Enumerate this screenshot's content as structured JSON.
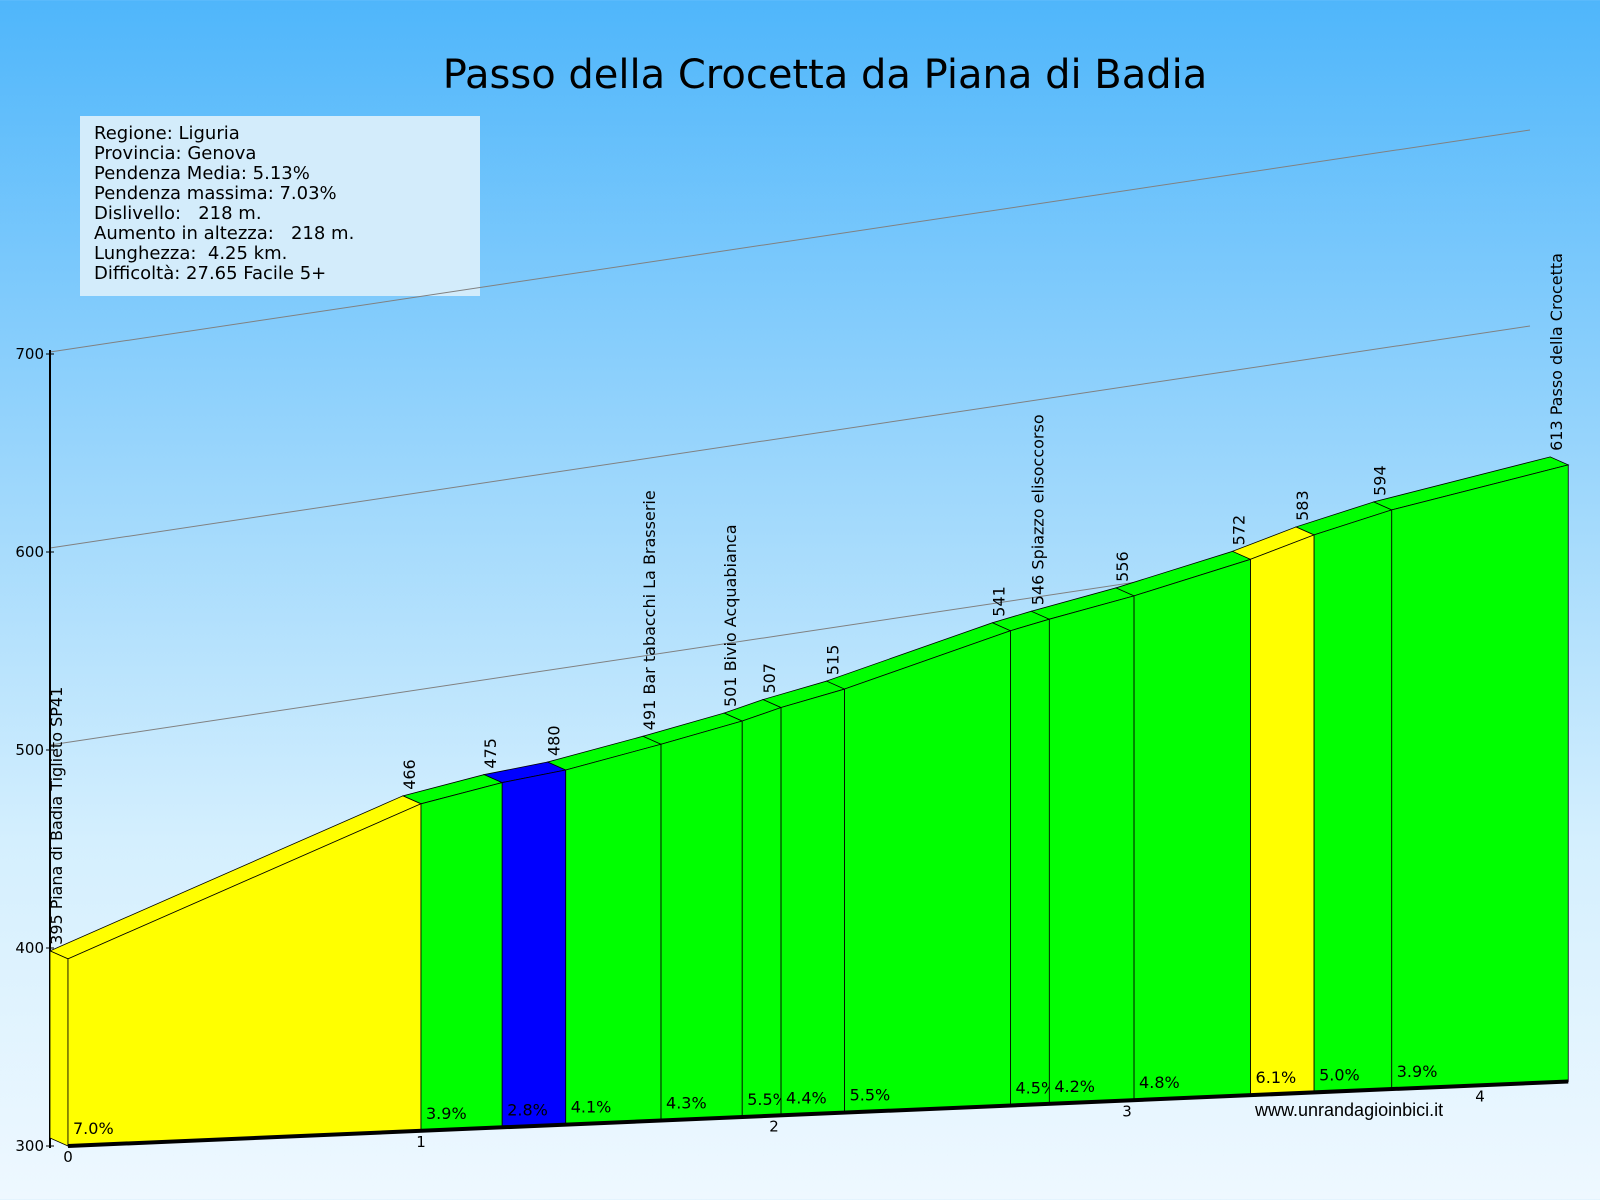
{
  "title": "Passo della Crocetta da Piana di Badia",
  "info": {
    "region": "Regione: Liguria",
    "province": "Provincia: Genova",
    "avg_grade": "Pendenza Media: 5.13%",
    "max_grade": "Pendenza massima: 7.03%",
    "elev_gain": "Dislivello:   218 m.",
    "altitude_gain": "Aumento in altezza:   218 m.",
    "length": "Lunghezza:  4.25 km.",
    "difficulty": "Difficoltà: 27.65 Facile 5+"
  },
  "website": "www.unrandagioinbici.it",
  "colors": {
    "easy": "#00ff00",
    "moderate": "#ffff00",
    "flat": "#0000ff",
    "gridline": "#808080"
  },
  "chart_data": {
    "type": "area",
    "title": "Passo della Crocetta da Piana di Badia",
    "xlabel": "",
    "ylabel": "",
    "ylim": [
      300,
      700
    ],
    "yticks": [
      300,
      400,
      500,
      600,
      700
    ],
    "xticks": [
      0,
      1,
      2,
      3,
      4
    ],
    "points": [
      {
        "km": 0.0,
        "alt": 395,
        "label": "395 Piana di Badia Tiglieto SP41"
      },
      {
        "km": 1.0,
        "alt": 466,
        "label": "466"
      },
      {
        "km": 1.23,
        "alt": 475,
        "label": "475"
      },
      {
        "km": 1.41,
        "alt": 480,
        "label": "480"
      },
      {
        "km": 1.68,
        "alt": 491,
        "label": "491 Bar tabacchi La Brasserie"
      },
      {
        "km": 1.91,
        "alt": 501,
        "label": "501 Bivio  Acquabianca"
      },
      {
        "km": 2.02,
        "alt": 507,
        "label": "507"
      },
      {
        "km": 2.2,
        "alt": 515,
        "label": "515"
      },
      {
        "km": 2.67,
        "alt": 541,
        "label": "541"
      },
      {
        "km": 2.78,
        "alt": 546,
        "label": "546 Spiazzo elisoccorso"
      },
      {
        "km": 3.02,
        "alt": 556,
        "label": "556"
      },
      {
        "km": 3.35,
        "alt": 572,
        "label": "572"
      },
      {
        "km": 3.53,
        "alt": 583,
        "label": "583"
      },
      {
        "km": 3.75,
        "alt": 594,
        "label": "594"
      },
      {
        "km": 4.25,
        "alt": 613,
        "label": "613 Passo della Crocetta"
      }
    ],
    "segments": [
      {
        "grade": "7.0%",
        "category": "moderate"
      },
      {
        "grade": "3.9%",
        "category": "easy"
      },
      {
        "grade": "2.8%",
        "category": "flat"
      },
      {
        "grade": "4.1%",
        "category": "easy"
      },
      {
        "grade": "4.3%",
        "category": "easy"
      },
      {
        "grade": "5.5%",
        "category": "easy"
      },
      {
        "grade": "4.4%",
        "category": "easy"
      },
      {
        "grade": "5.5%",
        "category": "easy"
      },
      {
        "grade": "4.5%",
        "category": "easy"
      },
      {
        "grade": "4.2%",
        "category": "easy"
      },
      {
        "grade": "4.8%",
        "category": "easy"
      },
      {
        "grade": "6.1%",
        "category": "moderate"
      },
      {
        "grade": "5.0%",
        "category": "easy"
      },
      {
        "grade": "3.9%",
        "category": "easy"
      }
    ]
  }
}
